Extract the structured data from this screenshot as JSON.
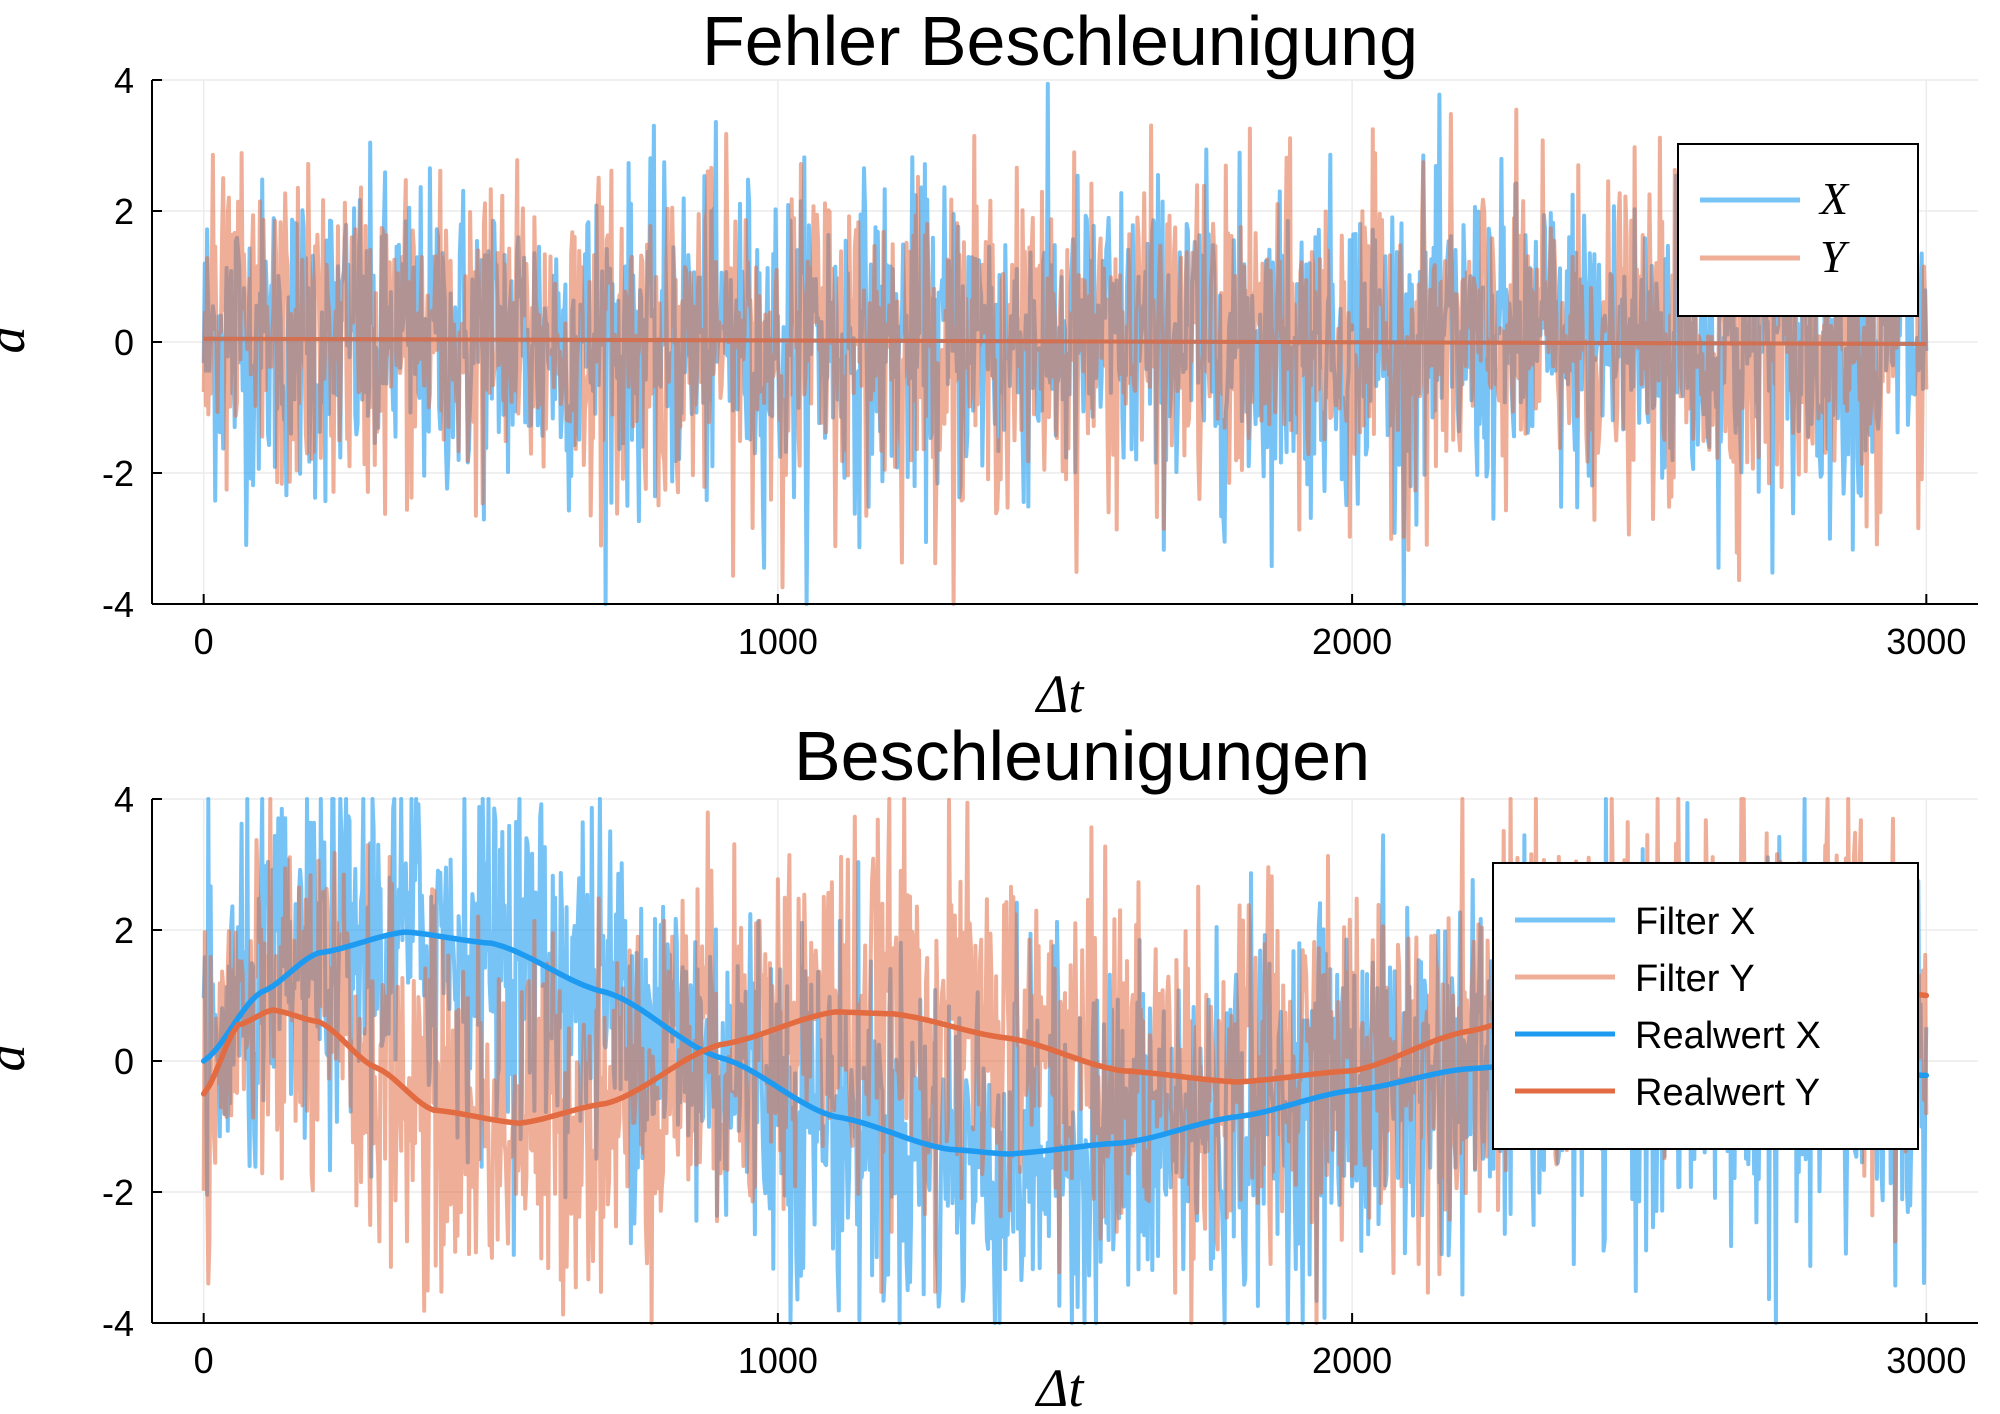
{
  "colors": {
    "x_series": "#1e9bf0",
    "y_series": "#e26b41",
    "grid": "#ececec",
    "axis": "#000000"
  },
  "chart_data": [
    {
      "type": "line",
      "title": "Fehler Beschleunigung",
      "xlabel": "Δt",
      "ylabel": "a",
      "xlim": [
        -90,
        3090
      ],
      "ylim": [
        -4,
        4
      ],
      "xticks": [
        0,
        1000,
        2000,
        3000
      ],
      "yticks": [
        -4,
        -2,
        0,
        2,
        4
      ],
      "xtick_labels": [
        "0",
        "1000",
        "2000",
        "3000"
      ],
      "ytick_labels": [
        "-4",
        "-2",
        "0",
        "2",
        "4"
      ],
      "grid": true,
      "legend_position": "top-right",
      "noise_std": 1.2,
      "series": [
        {
          "name": "X",
          "color": "#1e9bf0",
          "style": "noisy",
          "opacity": 0.6,
          "x": [
            0,
            3000
          ],
          "y": [
            0.05,
            -0.03
          ]
        },
        {
          "name": "Y",
          "color": "#e26b41",
          "style": "noisy",
          "opacity": 0.55,
          "x": [
            0,
            3000
          ],
          "y": [
            0.05,
            -0.03
          ]
        }
      ]
    },
    {
      "type": "line",
      "title": "Beschleunigungen",
      "xlabel": "Δt",
      "ylabel": "a",
      "xlim": [
        -90,
        3090
      ],
      "ylim": [
        -4,
        4
      ],
      "xticks": [
        0,
        1000,
        2000,
        3000
      ],
      "yticks": [
        -4,
        -2,
        0,
        2,
        4
      ],
      "xtick_labels": [
        "0",
        "1000",
        "2000",
        "3000"
      ],
      "ytick_labels": [
        "-4",
        "-2",
        "0",
        "2",
        "4"
      ],
      "grid": true,
      "legend_position": "top-right",
      "noise_std": 1.4,
      "series": [
        {
          "name": "Filter X",
          "color": "#1e9bf0",
          "style": "noisy",
          "opacity": 0.6,
          "follows": "Realwert X"
        },
        {
          "name": "Filter Y",
          "color": "#e26b41",
          "style": "noisy",
          "opacity": 0.55,
          "follows": "Realwert Y"
        },
        {
          "name": "Realwert X",
          "color": "#1e9bf0",
          "style": "solid",
          "x": [
            0,
            100,
            200,
            350,
            500,
            700,
            900,
            1100,
            1300,
            1400,
            1600,
            1800,
            2000,
            2200,
            2400,
            2600,
            2800,
            3000
          ],
          "y": [
            0.0,
            1.05,
            1.65,
            1.97,
            1.8,
            1.05,
            0.05,
            -0.85,
            -1.35,
            -1.42,
            -1.25,
            -0.85,
            -0.45,
            -0.12,
            0.05,
            0.0,
            -0.1,
            -0.22
          ]
        },
        {
          "name": "Realwert Y",
          "color": "#e26b41",
          "style": "solid",
          "x": [
            0,
            60,
            120,
            200,
            300,
            400,
            550,
            700,
            900,
            1100,
            1200,
            1400,
            1600,
            1800,
            2000,
            2200,
            2400,
            2600,
            2800,
            3000
          ],
          "y": [
            -0.5,
            0.55,
            0.78,
            0.6,
            -0.1,
            -0.75,
            -0.95,
            -0.65,
            0.25,
            0.75,
            0.72,
            0.35,
            -0.15,
            -0.32,
            -0.15,
            0.45,
            1.0,
            1.35,
            1.35,
            1.0
          ]
        }
      ]
    }
  ]
}
